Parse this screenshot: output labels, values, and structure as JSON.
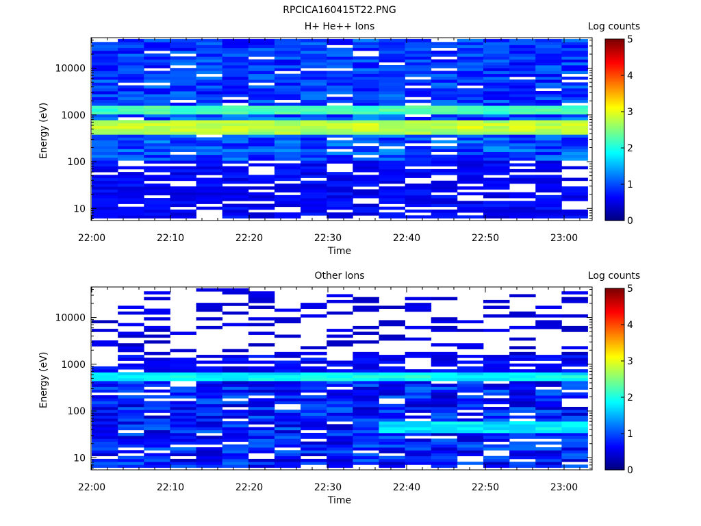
{
  "figure_title": "RPCICA160415T22.PNG",
  "chart_data": [
    {
      "type": "heatmap",
      "title": "H+ He++ Ions",
      "xlabel": "Time",
      "ylabel": "Energy (eV)",
      "x_range": [
        "22:00",
        "23:03"
      ],
      "x_ticks": [
        "22:00",
        "22:10",
        "22:20",
        "22:30",
        "22:40",
        "22:50",
        "23:00"
      ],
      "y_scale": "log",
      "ylim": [
        5.5,
        45000
      ],
      "y_ticks": [
        "10",
        "100",
        "1000",
        "10000"
      ],
      "colorbar": {
        "label": "Log counts",
        "range": [
          0,
          5
        ],
        "ticks": [
          "0",
          "1",
          "2",
          "3",
          "4",
          "5"
        ],
        "colormap": "jet"
      },
      "features": {
        "peak_band_energy_eV": [
          380,
          800
        ],
        "peak_band_log_counts": 2.9,
        "secondary_band_energy_eV": [
          1050,
          1500
        ],
        "secondary_band_log_counts": 2.2,
        "high_energy_background_log_counts": 0.9,
        "low_energy_log_counts": 0.4
      }
    },
    {
      "type": "heatmap",
      "title": "Other Ions",
      "xlabel": "Time",
      "ylabel": "Energy (eV)",
      "x_range": [
        "22:00",
        "23:03"
      ],
      "x_ticks": [
        "22:00",
        "22:10",
        "22:20",
        "22:30",
        "22:40",
        "22:50",
        "23:00"
      ],
      "y_scale": "log",
      "ylim": [
        5.5,
        45000
      ],
      "y_ticks": [
        "10",
        "100",
        "1000",
        "10000"
      ],
      "colorbar": {
        "label": "Log counts",
        "range": [
          0,
          5
        ],
        "ticks": [
          "0",
          "1",
          "2",
          "3",
          "4",
          "5"
        ],
        "colormap": "jet"
      },
      "features": {
        "peak_band_energy_eV": [
          420,
          700
        ],
        "peak_band_log_counts": 2.0,
        "low_energy_band_energy_eV": [
          35,
          60
        ],
        "low_energy_band_log_counts": 1.8,
        "low_energy_band_time_range": [
          "22:38",
          "23:03"
        ],
        "high_energy_background_log_counts": 0.3
      }
    }
  ]
}
